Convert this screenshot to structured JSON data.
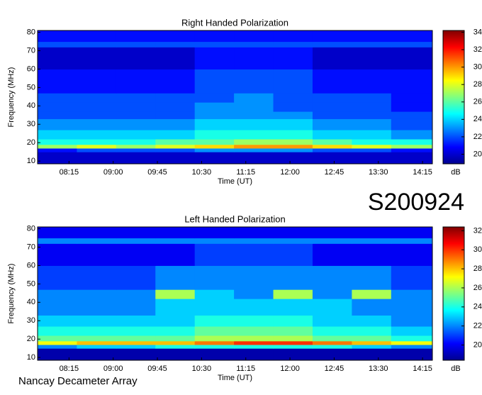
{
  "chart_data": [
    {
      "type": "heatmap",
      "title": "Right Handed Polarization",
      "xlabel": "Time (UT)",
      "ylabel": "Frequency (MHz)",
      "colorbar_label": "dB",
      "colorscale": "jet",
      "xlim": [
        463,
        865
      ],
      "ylim": [
        8.5,
        81
      ],
      "xticks": [
        {
          "value": 495,
          "label": "08:15"
        },
        {
          "value": 540,
          "label": "09:00"
        },
        {
          "value": 585,
          "label": "09:45"
        },
        {
          "value": 630,
          "label": "10:30"
        },
        {
          "value": 675,
          "label": "11:15"
        },
        {
          "value": 720,
          "label": "12:00"
        },
        {
          "value": 765,
          "label": "12:45"
        },
        {
          "value": 810,
          "label": "13:30"
        },
        {
          "value": 855,
          "label": "14:15"
        }
      ],
      "yticks": [
        10,
        20,
        30,
        40,
        50,
        60,
        70,
        80
      ],
      "clim": [
        18.9,
        34.2
      ],
      "cticks": [
        20,
        22,
        24,
        26,
        28,
        30,
        32,
        34
      ],
      "xbins": [
        463,
        503,
        543,
        583,
        623,
        663,
        703,
        743,
        783,
        823,
        865
      ],
      "ybins": [
        8.5,
        15,
        17,
        19,
        22,
        27,
        33,
        37,
        42,
        47,
        60,
        72,
        75,
        81
      ],
      "z": [
        [
          20,
          20,
          20,
          20,
          20,
          20,
          20,
          20,
          20,
          20
        ],
        [
          21,
          22,
          22,
          22,
          23,
          23,
          23,
          22,
          22,
          21
        ],
        [
          27,
          28,
          27,
          28,
          29,
          30,
          30,
          29,
          28,
          27
        ],
        [
          25,
          25,
          25,
          26,
          26,
          27,
          27,
          26,
          25,
          25
        ],
        [
          24,
          24,
          24,
          24,
          25,
          25,
          25,
          24,
          24,
          23
        ],
        [
          23,
          23,
          23,
          23,
          24,
          24,
          24,
          23,
          23,
          22
        ],
        [
          22,
          22,
          22,
          22,
          23,
          23,
          23,
          22,
          22,
          22
        ],
        [
          22,
          22,
          22,
          22,
          23,
          23,
          22,
          22,
          22,
          21
        ],
        [
          22,
          22,
          22,
          22,
          22,
          23,
          22,
          22,
          22,
          21
        ],
        [
          21,
          21,
          21,
          21,
          22,
          22,
          22,
          21,
          21,
          21
        ],
        [
          20,
          20,
          20,
          20,
          21,
          21,
          21,
          20,
          20,
          20
        ],
        [
          22,
          22,
          22,
          22,
          22,
          22,
          22,
          22,
          22,
          22
        ],
        [
          21,
          21,
          21,
          21,
          21,
          21,
          21,
          21,
          21,
          21
        ]
      ]
    },
    {
      "type": "heatmap",
      "title": "Left Handed Polarization",
      "xlabel": "Time (UT)",
      "ylabel": "Frequency (MHz)",
      "colorbar_label": "dB",
      "colorscale": "jet",
      "xlim": [
        463,
        865
      ],
      "ylim": [
        8.5,
        81
      ],
      "xticks": [
        {
          "value": 495,
          "label": "08:15"
        },
        {
          "value": 540,
          "label": "09:00"
        },
        {
          "value": 585,
          "label": "09:45"
        },
        {
          "value": 630,
          "label": "10:30"
        },
        {
          "value": 675,
          "label": "11:15"
        },
        {
          "value": 720,
          "label": "12:00"
        },
        {
          "value": 765,
          "label": "12:45"
        },
        {
          "value": 810,
          "label": "13:30"
        },
        {
          "value": 855,
          "label": "14:15"
        }
      ],
      "yticks": [
        10,
        20,
        30,
        40,
        50,
        60,
        70,
        80
      ],
      "clim": [
        18.4,
        32.4
      ],
      "cticks": [
        20,
        22,
        24,
        26,
        28,
        30,
        32
      ],
      "xbins": [
        463,
        503,
        543,
        583,
        623,
        663,
        703,
        743,
        783,
        823,
        865
      ],
      "ybins": [
        8.5,
        15,
        17,
        19,
        22,
        27,
        33,
        37,
        42,
        47,
        60,
        72,
        75,
        81
      ],
      "z": [
        [
          19,
          19,
          19,
          19,
          19,
          19,
          19,
          19,
          19,
          19
        ],
        [
          22,
          23,
          23,
          24,
          24,
          24,
          24,
          24,
          23,
          22
        ],
        [
          27,
          28,
          28,
          28,
          29,
          30,
          30,
          29,
          28,
          27
        ],
        [
          25,
          25,
          25,
          25,
          26,
          26,
          26,
          25,
          25,
          24
        ],
        [
          24,
          24,
          24,
          24,
          25,
          25,
          25,
          24,
          24,
          23
        ],
        [
          23,
          23,
          23,
          23,
          24,
          24,
          24,
          23,
          23,
          22
        ],
        [
          22,
          22,
          22,
          23,
          23,
          23,
          23,
          23,
          22,
          22
        ],
        [
          22,
          22,
          22,
          23,
          23,
          23,
          23,
          23,
          22,
          22
        ],
        [
          22,
          22,
          22,
          26,
          23,
          22,
          26,
          22,
          26,
          22
        ],
        [
          21,
          21,
          21,
          22,
          22,
          22,
          22,
          22,
          22,
          21
        ],
        [
          20,
          20,
          20,
          20,
          21,
          21,
          21,
          20,
          20,
          20
        ],
        [
          22,
          22,
          22,
          22,
          22,
          22,
          22,
          22,
          22,
          22
        ],
        [
          20,
          20,
          20,
          20,
          20,
          20,
          20,
          20,
          20,
          20
        ]
      ]
    }
  ],
  "event_id": "S200924",
  "footer": "Nancay Decameter Array"
}
